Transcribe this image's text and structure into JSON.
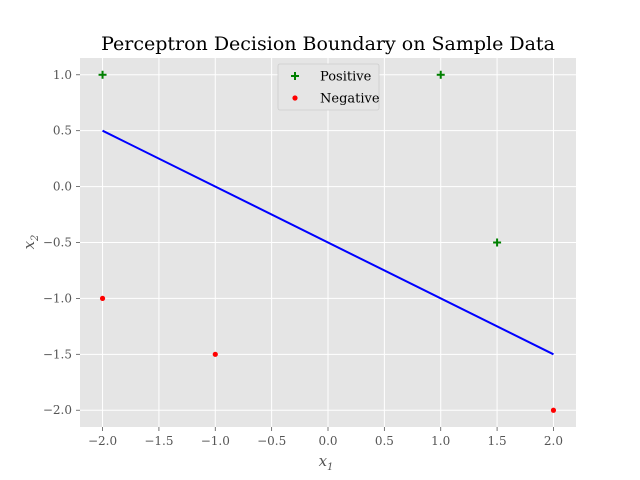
{
  "chart_data": {
    "type": "scatter",
    "title": "Perceptron Decision Boundary on Sample Data",
    "xlabel": "x",
    "xlabel_sub": "1",
    "ylabel": "x",
    "ylabel_sub": "2",
    "xlim": [
      -2.2,
      2.2
    ],
    "ylim": [
      -2.15,
      1.15
    ],
    "xticks": [
      -2.0,
      -1.5,
      -1.0,
      -0.5,
      0.0,
      0.5,
      1.0,
      1.5,
      2.0
    ],
    "xtick_labels": [
      "−2.0",
      "−1.5",
      "−1.0",
      "−0.5",
      "0.0",
      "0.5",
      "1.0",
      "1.5",
      "2.0"
    ],
    "yticks": [
      1.0,
      0.5,
      0.0,
      -0.5,
      -1.0,
      -1.5,
      -2.0
    ],
    "ytick_labels": [
      "1.0",
      "0.5",
      "0.0",
      "−0.5",
      "−1.0",
      "−1.5",
      "−2.0"
    ],
    "grid": true,
    "legend_position": "top-center",
    "series": [
      {
        "name": "Positive",
        "marker": "plus",
        "color": "#008000",
        "points": [
          [
            -2.0,
            1.0
          ],
          [
            1.0,
            1.0
          ],
          [
            1.5,
            -0.5
          ]
        ]
      },
      {
        "name": "Negative",
        "marker": "dot",
        "color": "#ff0000",
        "points": [
          [
            -2.0,
            -1.0
          ],
          [
            -1.0,
            -1.5
          ],
          [
            2.0,
            -2.0
          ]
        ]
      }
    ],
    "boundary_line": {
      "color": "#0000ff",
      "x": [
        -2.0,
        2.0
      ],
      "y": [
        0.5,
        -1.5
      ]
    },
    "colors": {
      "axes_background": "#e5e5e5",
      "grid": "#ffffff"
    }
  }
}
